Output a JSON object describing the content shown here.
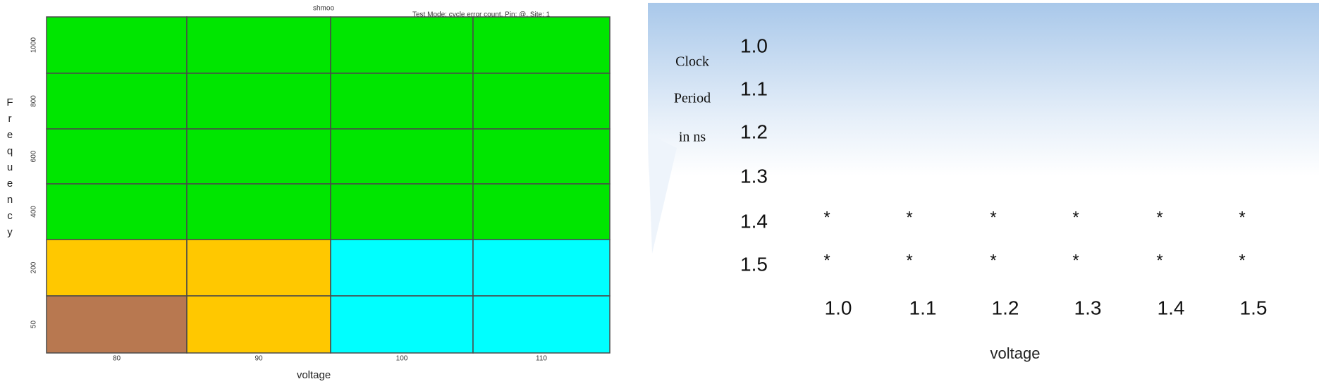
{
  "shmoo": {
    "title": "shmoo",
    "test_mode": "Test Mode: cycle error count, Pin: @, Site: 1",
    "y_label": "Frequency",
    "x_label": "voltage",
    "y_ticks": [
      "1000",
      "800",
      "600",
      "400",
      "200",
      "50"
    ],
    "x_ticks": [
      "80",
      "90",
      "100",
      "110"
    ],
    "cells": [
      [
        "#00e600",
        "#00e600",
        "#00e600",
        "#00e600"
      ],
      [
        "#00e600",
        "#00e600",
        "#00e600",
        "#00e600"
      ],
      [
        "#00e600",
        "#00e600",
        "#00e600",
        "#00e600"
      ],
      [
        "#00e600",
        "#00e600",
        "#00e600",
        "#00e600"
      ],
      [
        "#ffc800",
        "#ffc800",
        "#00ffff",
        "#00ffff"
      ],
      [
        "#b87850",
        "#ffc800",
        "#00ffff",
        "#00ffff"
      ]
    ]
  },
  "table": {
    "y_title": [
      "Clock",
      "Period",
      "in ns"
    ],
    "x_label": "voltage",
    "x_ticks": [
      "1.0",
      "1.1",
      "1.2",
      "1.3",
      "1.4",
      "1.5"
    ],
    "rows": [
      {
        "label": "1.0"
      },
      {
        "label": "1.1"
      },
      {
        "label": "1.2"
      },
      {
        "label": "1.3"
      },
      {
        "label": "1.4",
        "cells": [
          "*",
          "*",
          "*",
          "*",
          "*",
          "*"
        ]
      },
      {
        "label": "1.5",
        "cells": [
          "*",
          "*",
          "*",
          "*",
          "*",
          "*"
        ]
      }
    ]
  }
}
